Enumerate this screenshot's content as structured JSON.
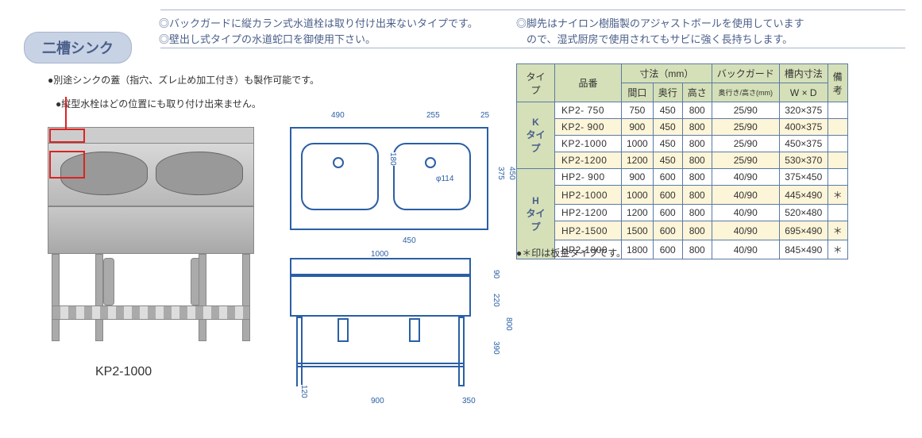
{
  "notes": {
    "top_left_1": "◎バックガードに縦カラン式水道栓は取り付け出来ないタイプです。",
    "top_left_2": "◎壁出し式タイプの水道蛇口を御使用下さい。",
    "top_right_1": "◎脚先はナイロン樹脂製のアジャストボールを使用しています",
    "top_right_2": "　ので、湿式厨房で使用されてもサビに強く長持ちします。",
    "sub1": "●別途シンクの蓋（指穴、ズレ止め加工付き）も製作可能です。",
    "sub2": "●縦型水栓はどの位置にも取り付け出来ません。",
    "footnote": "●＊印は板金タイプです。"
  },
  "title": "二槽シンク",
  "photo_caption": "KP2-1000",
  "diagram": {
    "top_w1": "490",
    "top_w2": "255",
    "top_margin": "25",
    "bowl_h": "180",
    "plan_d": "375",
    "overall_d": "450",
    "phi": "φ114",
    "inner_w": "450",
    "overall_w": "1000",
    "back_h": "90",
    "bowl_depth": "220",
    "shelf_h": "390",
    "overall_h": "800",
    "front_w": "900",
    "foot_h": "120",
    "side_d": "350"
  },
  "table": {
    "headers": {
      "type": "タイプ",
      "pn": "品番",
      "dims": "寸法（mm）",
      "w": "間口",
      "d": "奥行",
      "h": "高さ",
      "bg": "バックガード",
      "bg_sub": "奥行き/高さ(mm)",
      "inner": "槽内寸法",
      "inner_sub": "W × D",
      "note": "備考"
    },
    "groups": [
      {
        "label": "K\nタイプ",
        "rows": [
          {
            "pn": "KP2-  750",
            "w": "750",
            "d": "450",
            "h": "800",
            "bg": "25/90",
            "inner": "320×375",
            "note": "",
            "hl": false
          },
          {
            "pn": "KP2-  900",
            "w": "900",
            "d": "450",
            "h": "800",
            "bg": "25/90",
            "inner": "400×375",
            "note": "",
            "hl": true
          },
          {
            "pn": "KP2-1000",
            "w": "1000",
            "d": "450",
            "h": "800",
            "bg": "25/90",
            "inner": "450×375",
            "note": "",
            "hl": false
          },
          {
            "pn": "KP2-1200",
            "w": "1200",
            "d": "450",
            "h": "800",
            "bg": "25/90",
            "inner": "530×370",
            "note": "",
            "hl": true
          }
        ]
      },
      {
        "label": "H\nタイプ",
        "rows": [
          {
            "pn": "HP2-  900",
            "w": "900",
            "d": "600",
            "h": "800",
            "bg": "40/90",
            "inner": "375×450",
            "note": "",
            "hl": false
          },
          {
            "pn": "HP2-1000",
            "w": "1000",
            "d": "600",
            "h": "800",
            "bg": "40/90",
            "inner": "445×490",
            "note": "＊",
            "hl": true
          },
          {
            "pn": "HP2-1200",
            "w": "1200",
            "d": "600",
            "h": "800",
            "bg": "40/90",
            "inner": "520×480",
            "note": "",
            "hl": false
          },
          {
            "pn": "HP2-1500",
            "w": "1500",
            "d": "600",
            "h": "800",
            "bg": "40/90",
            "inner": "695×490",
            "note": "＊",
            "hl": true
          },
          {
            "pn": "HP2-1800",
            "w": "1800",
            "d": "600",
            "h": "800",
            "bg": "40/90",
            "inner": "845×490",
            "note": "＊",
            "hl": false
          }
        ]
      }
    ]
  },
  "colors": {
    "accent": "#4a5f8a",
    "line": "#2a5fa5",
    "header_bg": "#d5e0b8",
    "highlight_bg": "#fdf5d8",
    "border": "#5a7aa5"
  }
}
